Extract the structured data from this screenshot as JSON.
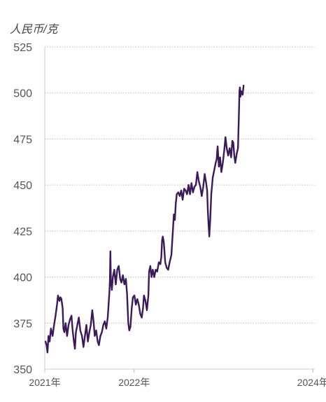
{
  "chart_data": {
    "type": "line",
    "ylabel": "人民币/克",
    "ylim": [
      350,
      525
    ],
    "y_ticks": [
      "350",
      "375",
      "400",
      "425",
      "450",
      "475",
      "500",
      "525"
    ],
    "x_ticks": [
      {
        "label": "2021年",
        "date": "2021-01-01"
      },
      {
        "label": "2022年",
        "date": "2022-01-01"
      },
      {
        "label": "2024年",
        "date": "2024-01-01"
      }
    ],
    "xlim": [
      "2021-01-01",
      "2024-01-03"
    ],
    "grid": true,
    "line_color": "#3b1a5a",
    "grid_color": "#bdbdbd",
    "axis_text_color": "#555555",
    "series": [
      {
        "points": [
          [
            "2021-01-04",
            365
          ],
          [
            "2021-01-08",
            363
          ],
          [
            "2021-01-12",
            359
          ],
          [
            "2021-01-16",
            368
          ],
          [
            "2021-01-21",
            365
          ],
          [
            "2021-01-26",
            372
          ],
          [
            "2021-02-02",
            368
          ],
          [
            "2021-02-08",
            374
          ],
          [
            "2021-02-14",
            379
          ],
          [
            "2021-02-20",
            385
          ],
          [
            "2021-02-24",
            390
          ],
          [
            "2021-03-02",
            387
          ],
          [
            "2021-03-06",
            389
          ],
          [
            "2021-03-10",
            388
          ],
          [
            "2021-03-15",
            383
          ],
          [
            "2021-03-18",
            372
          ],
          [
            "2021-03-22",
            370
          ],
          [
            "2021-03-27",
            375
          ],
          [
            "2021-04-02",
            368
          ],
          [
            "2021-04-08",
            374
          ],
          [
            "2021-04-14",
            377
          ],
          [
            "2021-04-20",
            379
          ],
          [
            "2021-04-24",
            372
          ],
          [
            "2021-04-29",
            366
          ],
          [
            "2021-05-04",
            361
          ],
          [
            "2021-05-08",
            370
          ],
          [
            "2021-05-14",
            374
          ],
          [
            "2021-05-20",
            378
          ],
          [
            "2021-05-26",
            371
          ],
          [
            "2021-06-02",
            368
          ],
          [
            "2021-06-08",
            362
          ],
          [
            "2021-06-14",
            368
          ],
          [
            "2021-06-20",
            374
          ],
          [
            "2021-06-26",
            365
          ],
          [
            "2021-07-02",
            370
          ],
          [
            "2021-07-08",
            374
          ],
          [
            "2021-07-14",
            382
          ],
          [
            "2021-07-19",
            376
          ],
          [
            "2021-07-24",
            368
          ],
          [
            "2021-07-30",
            371
          ],
          [
            "2021-08-05",
            365
          ],
          [
            "2021-08-10",
            363
          ],
          [
            "2021-08-16",
            368
          ],
          [
            "2021-08-22",
            370
          ],
          [
            "2021-08-28",
            374
          ],
          [
            "2021-09-03",
            376
          ],
          [
            "2021-09-09",
            372
          ],
          [
            "2021-09-15",
            378
          ],
          [
            "2021-09-19",
            386
          ],
          [
            "2021-09-22",
            392
          ],
          [
            "2021-09-24",
            398
          ],
          [
            "2021-09-26",
            414
          ],
          [
            "2021-09-28",
            398
          ],
          [
            "2021-10-02",
            393
          ],
          [
            "2021-10-06",
            400
          ],
          [
            "2021-10-12",
            404
          ],
          [
            "2021-10-18",
            396
          ],
          [
            "2021-10-24",
            404
          ],
          [
            "2021-10-30",
            406
          ],
          [
            "2021-11-05",
            399
          ],
          [
            "2021-11-10",
            397
          ],
          [
            "2021-11-16",
            401
          ],
          [
            "2021-11-22",
            396
          ],
          [
            "2021-11-28",
            399
          ],
          [
            "2021-12-03",
            391
          ],
          [
            "2021-12-08",
            375
          ],
          [
            "2021-12-12",
            371
          ],
          [
            "2021-12-17",
            373
          ],
          [
            "2021-12-22",
            383
          ],
          [
            "2021-12-27",
            389
          ],
          [
            "2022-01-02",
            390
          ],
          [
            "2022-01-08",
            385
          ],
          [
            "2022-01-14",
            388
          ],
          [
            "2022-01-20",
            385
          ],
          [
            "2022-01-26",
            380
          ],
          [
            "2022-02-01",
            378
          ],
          [
            "2022-02-06",
            383
          ],
          [
            "2022-02-10",
            390
          ],
          [
            "2022-02-16",
            387
          ],
          [
            "2022-02-22",
            382
          ],
          [
            "2022-02-28",
            390
          ],
          [
            "2022-03-03",
            403
          ],
          [
            "2022-03-08",
            406
          ],
          [
            "2022-03-13",
            400
          ],
          [
            "2022-03-18",
            404
          ],
          [
            "2022-03-24",
            400
          ],
          [
            "2022-03-30",
            404
          ],
          [
            "2022-04-05",
            403
          ],
          [
            "2022-04-12",
            408
          ],
          [
            "2022-04-18",
            407
          ],
          [
            "2022-04-22",
            411
          ],
          [
            "2022-04-25",
            420
          ],
          [
            "2022-04-28",
            422
          ],
          [
            "2022-05-02",
            419
          ],
          [
            "2022-05-08",
            408
          ],
          [
            "2022-05-14",
            405
          ],
          [
            "2022-05-20",
            404
          ],
          [
            "2022-05-26",
            408
          ],
          [
            "2022-06-02",
            412
          ],
          [
            "2022-06-08",
            425
          ],
          [
            "2022-06-12",
            434
          ],
          [
            "2022-06-16",
            431
          ],
          [
            "2022-06-20",
            440
          ],
          [
            "2022-06-24",
            445
          ],
          [
            "2022-06-30",
            446
          ],
          [
            "2022-07-06",
            444
          ],
          [
            "2022-07-12",
            447
          ],
          [
            "2022-07-18",
            442
          ],
          [
            "2022-07-24",
            448
          ],
          [
            "2022-07-30",
            447
          ],
          [
            "2022-08-05",
            445
          ],
          [
            "2022-08-11",
            450
          ],
          [
            "2022-08-17",
            445
          ],
          [
            "2022-08-23",
            451
          ],
          [
            "2022-08-29",
            446
          ],
          [
            "2022-09-04",
            449
          ],
          [
            "2022-09-10",
            450
          ],
          [
            "2022-09-16",
            457
          ],
          [
            "2022-09-22",
            452
          ],
          [
            "2022-09-28",
            449
          ],
          [
            "2022-10-04",
            444
          ],
          [
            "2022-10-10",
            449
          ],
          [
            "2022-10-16",
            456
          ],
          [
            "2022-10-22",
            451
          ],
          [
            "2022-10-26",
            447
          ],
          [
            "2022-10-29",
            436
          ],
          [
            "2022-11-01",
            428
          ],
          [
            "2022-11-04",
            422
          ],
          [
            "2022-11-08",
            432
          ],
          [
            "2022-11-12",
            445
          ],
          [
            "2022-11-18",
            454
          ],
          [
            "2022-11-24",
            458
          ],
          [
            "2022-11-30",
            462
          ],
          [
            "2022-12-04",
            464
          ],
          [
            "2022-12-08",
            471
          ],
          [
            "2022-12-13",
            460
          ],
          [
            "2022-12-18",
            465
          ],
          [
            "2022-12-23",
            457
          ],
          [
            "2022-12-29",
            462
          ],
          [
            "2023-01-04",
            469
          ],
          [
            "2023-01-09",
            476
          ],
          [
            "2023-01-14",
            470
          ],
          [
            "2023-01-20",
            466
          ],
          [
            "2023-01-26",
            470
          ],
          [
            "2023-02-01",
            465
          ],
          [
            "2023-02-06",
            474
          ],
          [
            "2023-02-10",
            473
          ],
          [
            "2023-02-14",
            466
          ],
          [
            "2023-02-18",
            462
          ],
          [
            "2023-02-24",
            467
          ],
          [
            "2023-03-01",
            470
          ],
          [
            "2023-03-03",
            480
          ],
          [
            "2023-03-05",
            490
          ],
          [
            "2023-03-07",
            501
          ],
          [
            "2023-03-09",
            503
          ],
          [
            "2023-03-11",
            498
          ],
          [
            "2023-03-14",
            501
          ],
          [
            "2023-03-17",
            500
          ],
          [
            "2023-03-20",
            499
          ],
          [
            "2023-03-24",
            504
          ]
        ]
      }
    ]
  }
}
